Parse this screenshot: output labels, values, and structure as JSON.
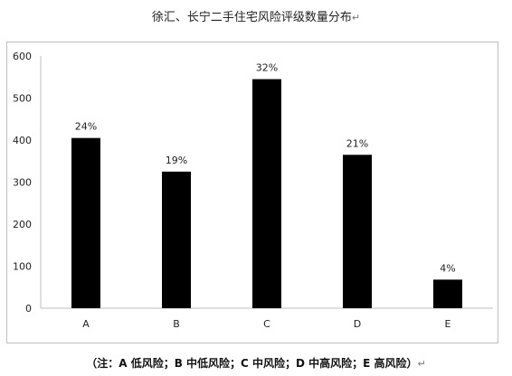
{
  "title": "徐汇、长宁二手住宅风险评级数量分布",
  "note": "（注：A 低风险；B 中低风险；C 中风险；D 中高风险；E 高风险）",
  "chart_data": {
    "type": "bar",
    "categories": [
      "A",
      "B",
      "C",
      "D",
      "E"
    ],
    "values": [
      405,
      325,
      545,
      365,
      68
    ],
    "data_labels": [
      "24%",
      "19%",
      "32%",
      "21%",
      "4%"
    ],
    "title": "徐汇、长宁二手住宅风险评级数量分布",
    "xlabel": "",
    "ylabel": "",
    "ylim": [
      0,
      600
    ],
    "yticks": [
      0,
      100,
      200,
      300,
      400,
      500,
      600
    ],
    "grid": false,
    "legend": "none",
    "bar_color": "#000000"
  }
}
